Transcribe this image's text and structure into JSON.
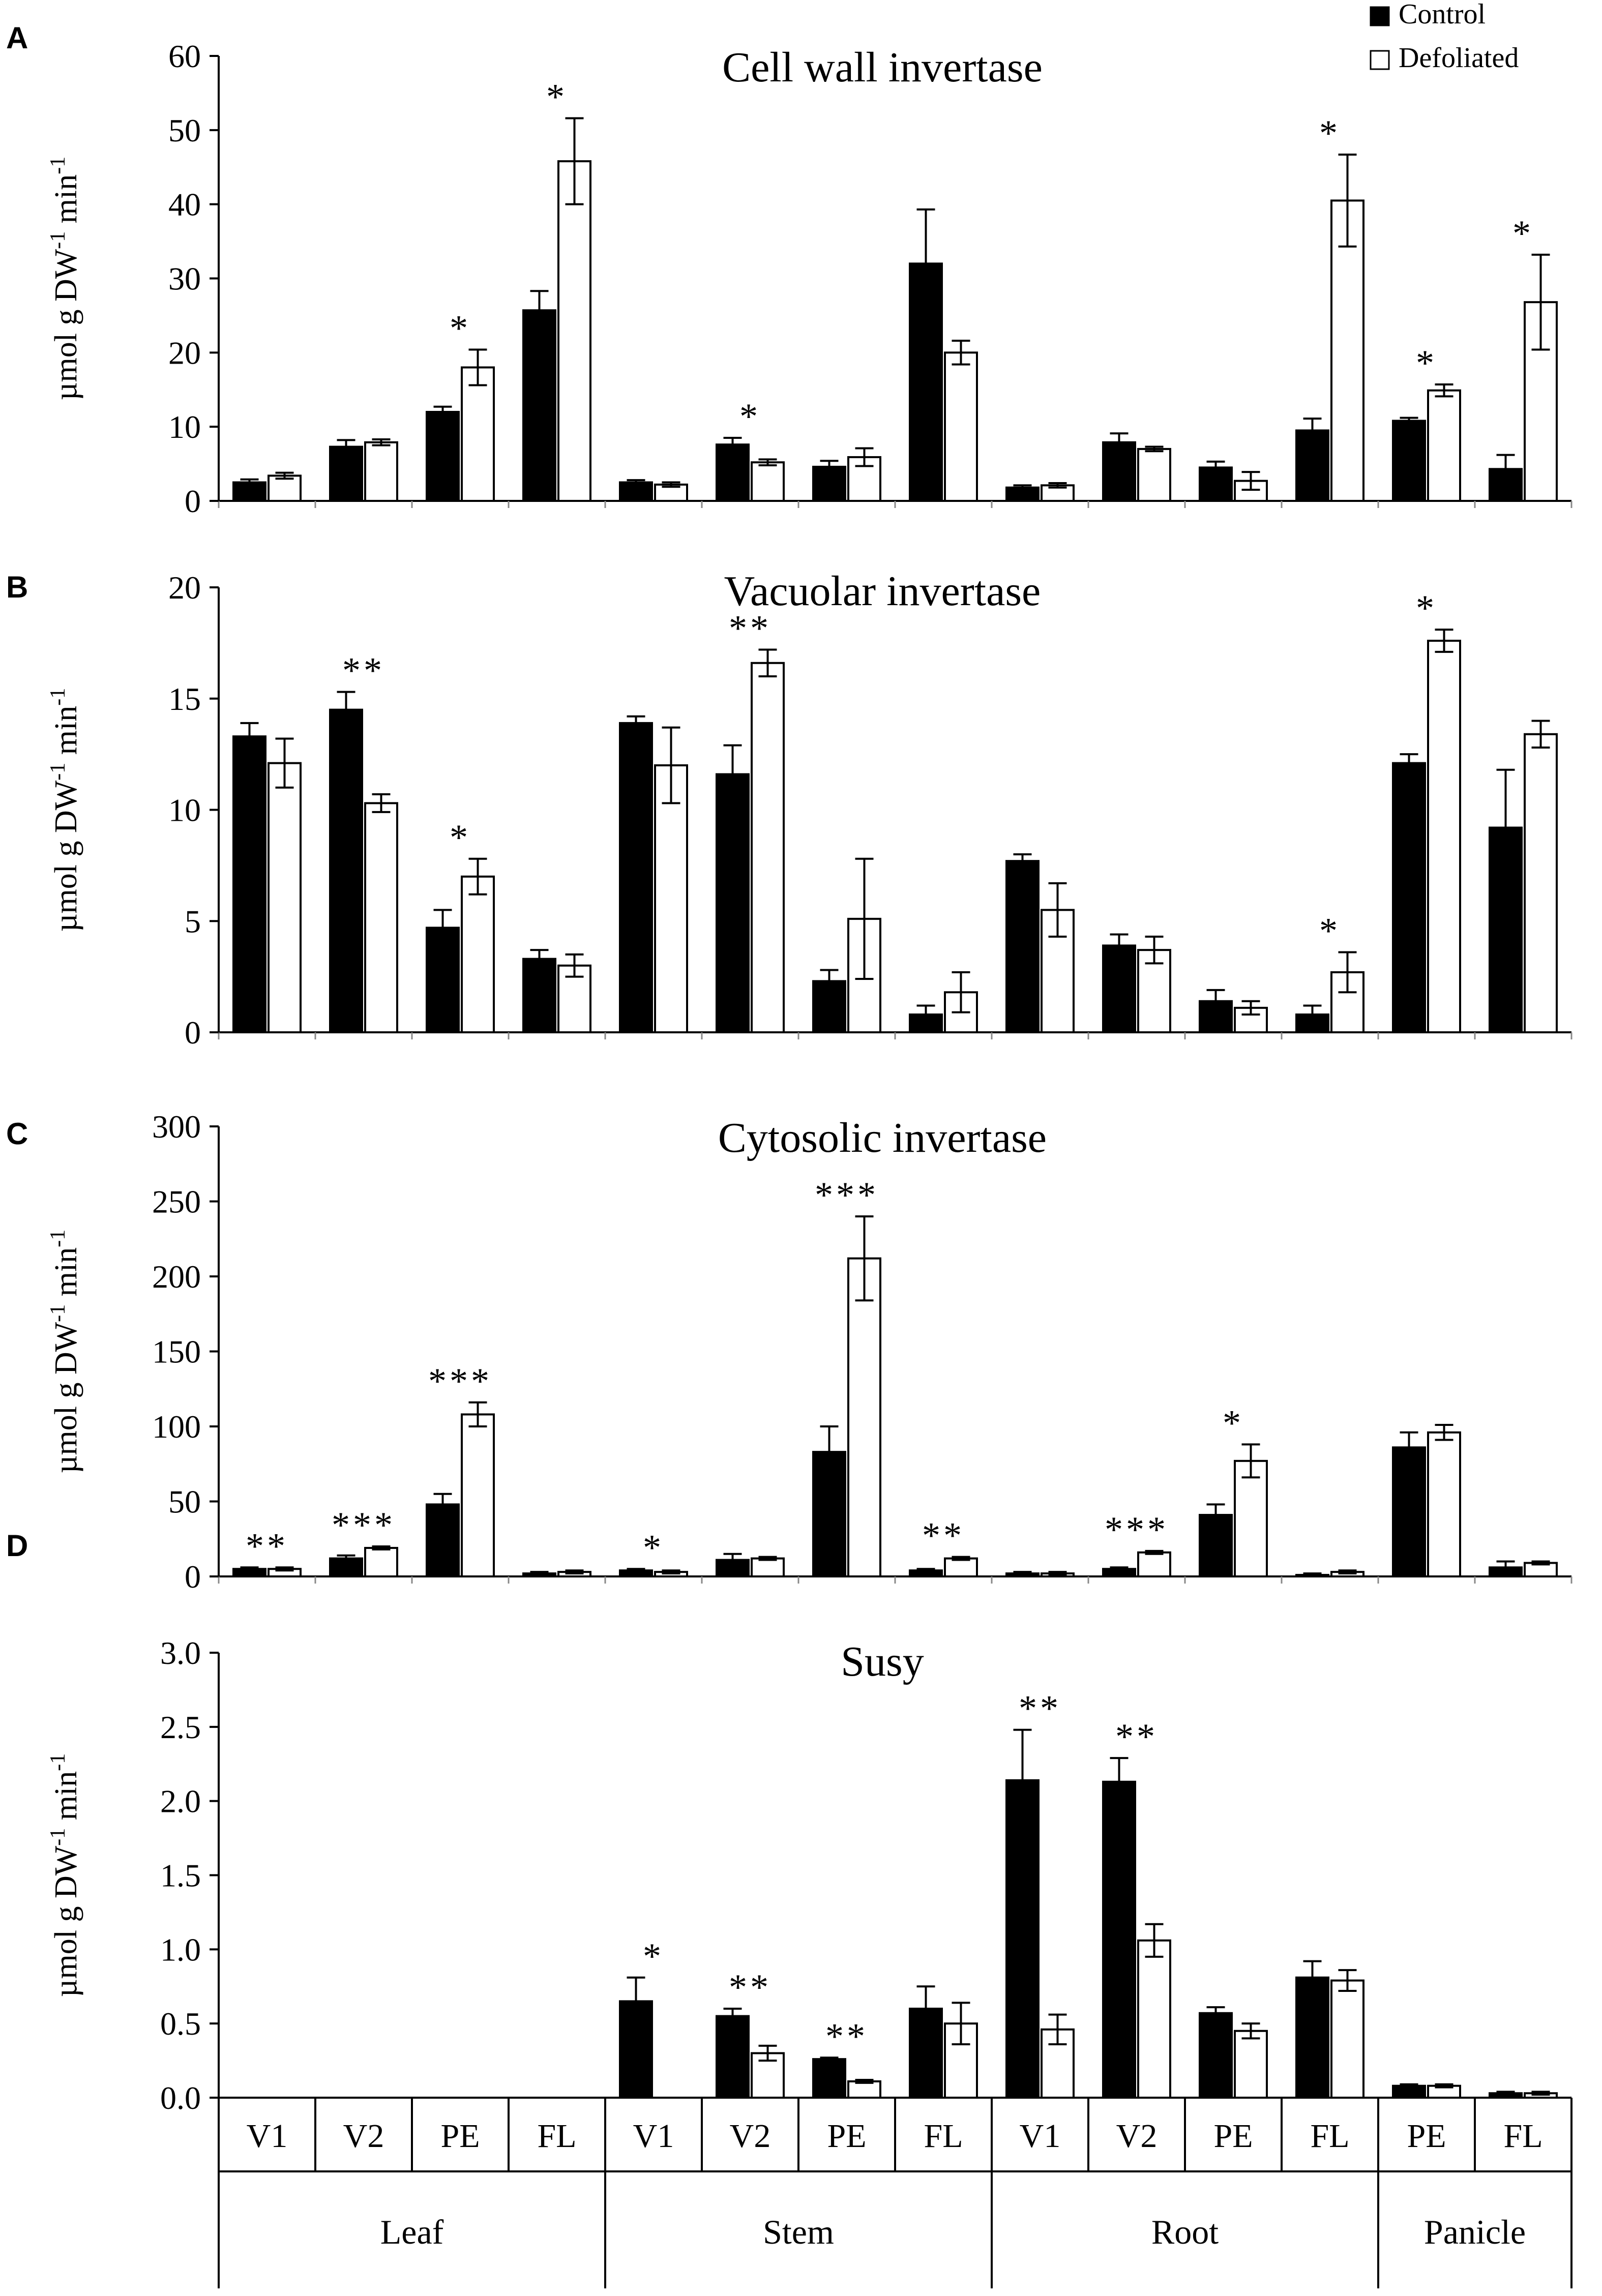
{
  "figure": {
    "y_label_main": "µmol g DW",
    "y_label_sup1": "-1",
    "y_label_mid": " min",
    "y_label_sup2": "-1",
    "tissues": [
      "Leaf",
      "Stem",
      "Root",
      "Panicle"
    ],
    "legend": {
      "control": "Control",
      "defoliated": "Defoliated",
      "control_color": "#000000",
      "defoliated_color": "#ffffff"
    }
  },
  "chart_data": [
    {
      "type": "bar",
      "panel_label": "A",
      "title": "Cell wall invertase",
      "ylabel": "µmol g DW-1 min-1",
      "ylim": [
        0,
        60
      ],
      "yticks": [
        "0",
        "10",
        "20",
        "30",
        "40",
        "50",
        "60"
      ],
      "categories": [
        "V1",
        "V2",
        "PE",
        "FL",
        "V1",
        "V2",
        "PE",
        "FL",
        "V1",
        "V2",
        "PE",
        "FL",
        "PE",
        "FL"
      ],
      "series": [
        {
          "name": "Control",
          "values": [
            2.5,
            7.3,
            12.0,
            25.7,
            2.5,
            7.6,
            4.6,
            32.0,
            1.8,
            7.9,
            4.5,
            9.5,
            10.8,
            4.3
          ],
          "errors": [
            0.4,
            0.9,
            0.7,
            2.6,
            0.3,
            0.9,
            0.8,
            7.3,
            0.3,
            1.2,
            0.8,
            1.6,
            0.4,
            1.9
          ]
        },
        {
          "name": "Defoliated",
          "values": [
            3.4,
            7.9,
            18.0,
            45.8,
            2.2,
            5.2,
            5.9,
            20.0,
            2.1,
            7.0,
            2.7,
            40.5,
            14.9,
            26.8
          ],
          "errors": [
            0.4,
            0.4,
            2.4,
            5.8,
            0.3,
            0.4,
            1.2,
            1.6,
            0.3,
            0.3,
            1.2,
            6.2,
            0.8,
            6.4
          ]
        }
      ],
      "significance": [
        "",
        "",
        "*",
        "*",
        "",
        "*",
        "",
        "",
        "",
        "",
        "",
        "*",
        "*",
        "*"
      ]
    },
    {
      "type": "bar",
      "panel_label": "B",
      "title": "Vacuolar invertase",
      "ylabel": "µmol g DW-1 min-1",
      "ylim": [
        0,
        20
      ],
      "yticks": [
        "0",
        "5",
        "10",
        "15",
        "20"
      ],
      "categories": [
        "V1",
        "V2",
        "PE",
        "FL",
        "V1",
        "V2",
        "PE",
        "FL",
        "V1",
        "V2",
        "PE",
        "FL",
        "PE",
        "FL"
      ],
      "series": [
        {
          "name": "Control",
          "values": [
            13.3,
            14.5,
            4.7,
            3.3,
            13.9,
            11.6,
            2.3,
            0.8,
            7.7,
            3.9,
            1.4,
            0.8,
            12.1,
            9.2
          ],
          "errors": [
            0.6,
            0.8,
            0.8,
            0.4,
            0.3,
            1.3,
            0.5,
            0.4,
            0.3,
            0.5,
            0.5,
            0.4,
            0.4,
            2.6
          ]
        },
        {
          "name": "Defoliated",
          "values": [
            12.1,
            10.3,
            7.0,
            3.0,
            12.0,
            16.6,
            5.1,
            1.8,
            5.5,
            3.7,
            1.1,
            2.7,
            17.6,
            13.4
          ],
          "errors": [
            1.1,
            0.4,
            0.8,
            0.5,
            1.7,
            0.6,
            2.7,
            0.9,
            1.2,
            0.6,
            0.3,
            0.9,
            0.5,
            0.6
          ]
        }
      ],
      "significance": [
        "",
        "**",
        "*",
        "",
        "",
        "**",
        "",
        "",
        "",
        "",
        "",
        "*",
        "*",
        ""
      ]
    },
    {
      "type": "bar",
      "panel_label": "C",
      "title": "Cytosolic invertase",
      "ylabel": "µmol g DW-1 min-1",
      "ylim": [
        0,
        300
      ],
      "yticks": [
        "0",
        "50",
        "100",
        "150",
        "200",
        "250",
        "300"
      ],
      "categories": [
        "V1",
        "V2",
        "PE",
        "FL",
        "V1",
        "V2",
        "PE",
        "FL",
        "V1",
        "V2",
        "PE",
        "FL",
        "PE",
        "FL"
      ],
      "series": [
        {
          "name": "Control",
          "values": [
            5,
            12,
            48,
            2,
            4,
            11,
            83,
            4,
            2,
            5,
            41,
            1,
            86,
            6
          ],
          "errors": [
            1,
            2,
            7,
            1,
            1,
            4,
            17,
            1,
            1,
            1,
            7,
            1,
            10,
            4
          ]
        },
        {
          "name": "Defoliated",
          "values": [
            5,
            19,
            108,
            3,
            3,
            12,
            212,
            12,
            2,
            16,
            77,
            3,
            96,
            9
          ],
          "errors": [
            1,
            1,
            8,
            1,
            1,
            1,
            28,
            1,
            1,
            1,
            11,
            1,
            5,
            1
          ]
        }
      ],
      "significance": [
        "**",
        "***",
        "***",
        "",
        "*",
        "",
        "***",
        "**",
        "",
        "***",
        "*",
        "",
        "",
        ""
      ]
    },
    {
      "type": "bar",
      "panel_label": "D",
      "title": "Susy",
      "ylabel": "µmol g DW-1 min-1",
      "ylim": [
        0,
        3.0
      ],
      "yticks": [
        "0.0",
        "0.5",
        "1.0",
        "1.5",
        "2.0",
        "2.5",
        "3.0"
      ],
      "categories": [
        "V1",
        "V2",
        "PE",
        "FL",
        "V1",
        "V2",
        "PE",
        "FL",
        "V1",
        "V2",
        "PE",
        "FL",
        "PE",
        "FL"
      ],
      "series": [
        {
          "name": "Control",
          "values": [
            null,
            null,
            null,
            null,
            0.65,
            0.55,
            0.26,
            0.6,
            2.14,
            2.13,
            0.57,
            0.81,
            0.08,
            0.03
          ],
          "errors": [
            0,
            0,
            0,
            0,
            0.16,
            0.05,
            0.01,
            0.15,
            0.34,
            0.16,
            0.04,
            0.11,
            0.01,
            0.01
          ]
        },
        {
          "name": "Defoliated",
          "values": [
            null,
            null,
            null,
            null,
            null,
            0.3,
            0.11,
            0.5,
            0.46,
            1.06,
            0.45,
            0.79,
            0.08,
            0.03
          ],
          "errors": [
            0,
            0,
            0,
            0,
            0,
            0.05,
            0.01,
            0.14,
            0.1,
            0.11,
            0.05,
            0.07,
            0.01,
            0.01
          ]
        }
      ],
      "significance": [
        "",
        "",
        "",
        "",
        "*",
        "**",
        "**",
        "",
        "**",
        "**",
        "",
        "",
        "",
        ""
      ]
    }
  ]
}
